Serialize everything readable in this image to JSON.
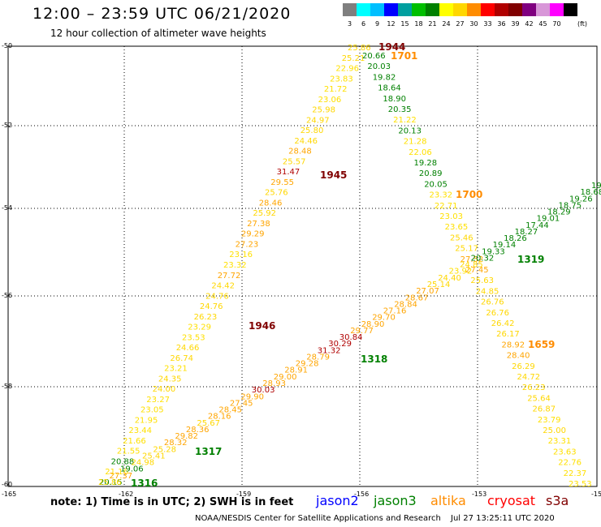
{
  "header": {
    "title": "12:00 – 23:59 UTC 06/21/2020",
    "subtitle": "12 hour collection of altimeter wave heights"
  },
  "legend": {
    "unit": "(ft)",
    "levels": [
      {
        "label": "3",
        "color": "#7f7f7f"
      },
      {
        "label": "6",
        "color": "#00ffff"
      },
      {
        "label": "9",
        "color": "#00bfff"
      },
      {
        "label": "12",
        "color": "#0000ff"
      },
      {
        "label": "15",
        "color": "#009f9f"
      },
      {
        "label": "18",
        "color": "#00bf00"
      },
      {
        "label": "21",
        "color": "#008000"
      },
      {
        "label": "24",
        "color": "#ffff00"
      },
      {
        "label": "27",
        "color": "#ffd700"
      },
      {
        "label": "30",
        "color": "#ff8c00"
      },
      {
        "label": "33",
        "color": "#ff0000"
      },
      {
        "label": "36",
        "color": "#b00000"
      },
      {
        "label": "39",
        "color": "#800000"
      },
      {
        "label": "42",
        "color": "#800080"
      },
      {
        "label": "45",
        "color": "#d896d8"
      },
      {
        "label": "70",
        "color": "#ff00ff"
      },
      {
        "label": "",
        "color": "#000000"
      }
    ]
  },
  "map": {
    "lon_ticks": [
      "-165",
      "-162",
      "-159",
      "-156",
      "-153",
      "-150"
    ],
    "lat_ticks": [
      "-50",
      "-52",
      "-54",
      "-56",
      "-58",
      "-60"
    ]
  },
  "tracks": [
    {
      "name": "1944-1946 altika",
      "color": "#ffd700",
      "values": [
        "25.86",
        "25.21",
        "22.96",
        "23.83",
        "21.72",
        "23.06",
        "25.98",
        "24.97",
        "25.80",
        "24.46",
        "28.48",
        "25.57",
        "31.47",
        "29.55",
        "25.76",
        "28.46",
        "25.92",
        "27.38",
        "29.29",
        "27.23",
        "23.16",
        "23.32",
        "27.72",
        "24.42",
        "24.76",
        "24.76",
        "26.23",
        "23.29",
        "23.53",
        "24.66",
        "26.74",
        "23.21",
        "24.35",
        "24.00",
        "23.27",
        "23.05",
        "21.95",
        "23.44",
        "21.66",
        "21.55",
        "20.88",
        "21.16",
        "20.15"
      ],
      "labels": [
        {
          "text": "1944",
          "color": "#800000"
        },
        {
          "text": "1945",
          "color": "#800000"
        },
        {
          "text": "1946",
          "color": "#800000"
        }
      ]
    },
    {
      "name": "1659-1701 altika",
      "color": "#ffd700",
      "values": [
        "20.66",
        "20.03",
        "19.82",
        "18.64",
        "18.90",
        "20.35",
        "21.22",
        "20.13",
        "21.28",
        "22.06",
        "19.28",
        "20.89",
        "20.05",
        "23.32",
        "22.71",
        "23.03",
        "23.65",
        "25.46",
        "25.17",
        "27.52",
        "27.45",
        "25.63",
        "24.85",
        "26.76",
        "26.76",
        "26.42",
        "26.17",
        "28.92",
        "28.40",
        "26.29",
        "24.72",
        "26.23",
        "25.64",
        "26.87",
        "23.79",
        "25.00",
        "23.31",
        "23.63",
        "22.76",
        "22.37",
        "23.53"
      ],
      "labels": [
        {
          "text": "1701",
          "color": "#ff8c00"
        },
        {
          "text": "1700",
          "color": "#ff8c00"
        },
        {
          "text": "1659",
          "color": "#ff8c00"
        }
      ]
    },
    {
      "name": "1316-1319 jason3",
      "color": "#008000",
      "values": [
        "25.86",
        "27.37",
        "19.06",
        "24.98",
        "25.41",
        "25.28",
        "28.32",
        "29.82",
        "28.36",
        "25.67",
        "28.16",
        "28.45",
        "27.45",
        "29.90",
        "30.03",
        "28.93",
        "29.00",
        "28.91",
        "29.28",
        "28.79",
        "31.32",
        "30.29",
        "30.84",
        "29.77",
        "28.90",
        "29.70",
        "27.16",
        "28.84",
        "28.67",
        "27.07",
        "25.14",
        "24.40",
        "23.92",
        "24.85",
        "20.32",
        "19.33",
        "19.14",
        "18.26",
        "18.27",
        "17.44",
        "19.01",
        "18.29",
        "18.75",
        "19.26",
        "18.68",
        "19.0"
      ],
      "labels": [
        {
          "text": "1316",
          "color": "#008000"
        },
        {
          "text": "1317",
          "color": "#008000"
        },
        {
          "text": "1318",
          "color": "#008000"
        },
        {
          "text": "1319",
          "color": "#008000"
        }
      ]
    }
  ],
  "footer": {
    "note": "note:  1) Time is in UTC;  2) SWH is in feet",
    "satellites": [
      {
        "name": "jason2",
        "color": "#0000ff"
      },
      {
        "name": "jason3",
        "color": "#008000"
      },
      {
        "name": "altika",
        "color": "#ff8c00"
      },
      {
        "name": "cryosat",
        "color": "#ff0000"
      },
      {
        "name": "s3a",
        "color": "#800000"
      }
    ],
    "credit": "NOAA/NESDIS Center for Satellite Applications and Research",
    "timestamp": "Jul 27 13:25:11 UTC 2020"
  }
}
